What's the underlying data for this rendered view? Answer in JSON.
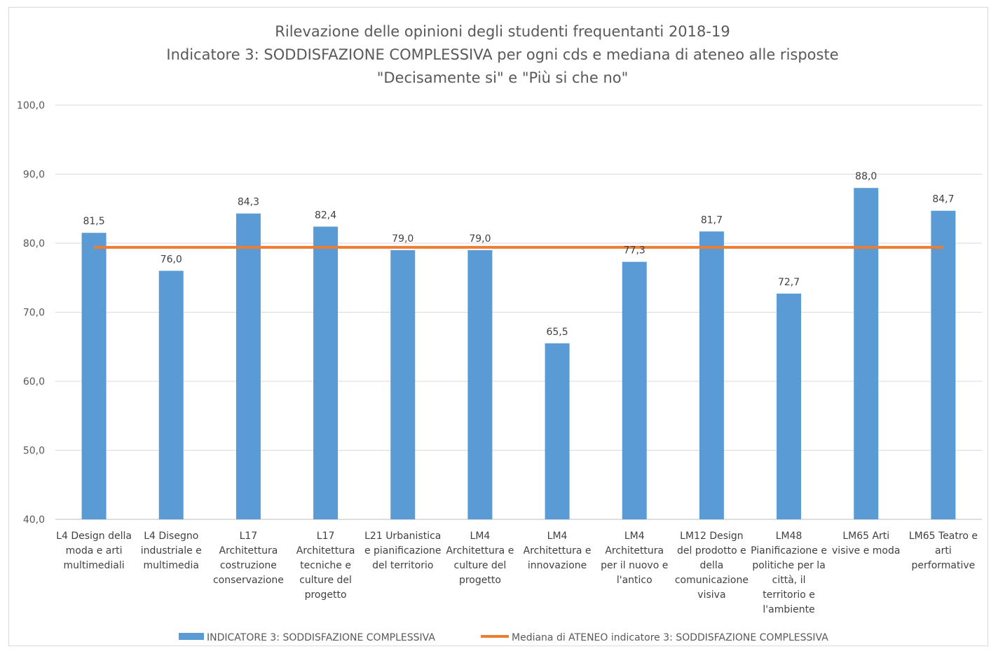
{
  "chart_data": {
    "type": "bar",
    "title_lines": [
      "Rilevazione delle opinioni degli studenti frequentanti 2018-19",
      "Indicatore 3: SODDISFAZIONE COMPLESSIVA per ogni cds e mediana di ateneo alle risposte",
      "\"Decisamente si\" e \"Più si che no\""
    ],
    "ylim": [
      40,
      100
    ],
    "yticks": [
      "40,0",
      "50,0",
      "60,0",
      "70,0",
      "80,0",
      "90,0",
      "100,0"
    ],
    "ytick_values": [
      40,
      50,
      60,
      70,
      80,
      90,
      100
    ],
    "grid": true,
    "legend_position": "bottom",
    "categories": [
      [
        "L4 Design della",
        "moda e arti",
        "multimediali"
      ],
      [
        "L4 Disegno",
        "industriale e",
        "multimedia"
      ],
      [
        "L17",
        "Architettura",
        "costruzione",
        "conservazione"
      ],
      [
        "L17",
        "Architettura",
        "tecniche e",
        "culture del",
        "progetto"
      ],
      [
        "L21 Urbanistica",
        "e pianificazione",
        "del territorio"
      ],
      [
        "LM4",
        "Architettura e",
        "culture del",
        "progetto"
      ],
      [
        "LM4",
        "Architettura e",
        "innovazione"
      ],
      [
        "LM4",
        "Architettura",
        "per il nuovo e",
        "l'antico"
      ],
      [
        "LM12 Design",
        "del prodotto e",
        "della",
        "comunicazione",
        "visiva"
      ],
      [
        "LM48",
        "Pianificazione e",
        "politiche per la",
        "città, il",
        "territorio e",
        "l'ambiente"
      ],
      [
        "LM65 Arti",
        "visive e moda"
      ],
      [
        "LM65 Teatro e",
        "arti",
        "performative"
      ]
    ],
    "series": [
      {
        "name": "INDICATORE 3: SODDISFAZIONE COMPLESSIVA",
        "type": "bar",
        "color": "#5b9bd5",
        "values": [
          81.5,
          76.0,
          84.3,
          82.4,
          79.0,
          79.0,
          65.5,
          77.3,
          81.7,
          72.7,
          88.0,
          84.7
        ],
        "labels": [
          "81,5",
          "76,0",
          "84,3",
          "82,4",
          "79,0",
          "79,0",
          "65,5",
          "77,3",
          "81,7",
          "72,7",
          "88,0",
          "84,7"
        ]
      },
      {
        "name": "Mediana di ATENEO indicatore 3: SODDISFAZIONE COMPLESSIVA",
        "type": "line",
        "color": "#ed7d31",
        "values": [
          79.4,
          79.4,
          79.4,
          79.4,
          79.4,
          79.4,
          79.4,
          79.4,
          79.4,
          79.4,
          79.4,
          79.4
        ]
      }
    ]
  }
}
